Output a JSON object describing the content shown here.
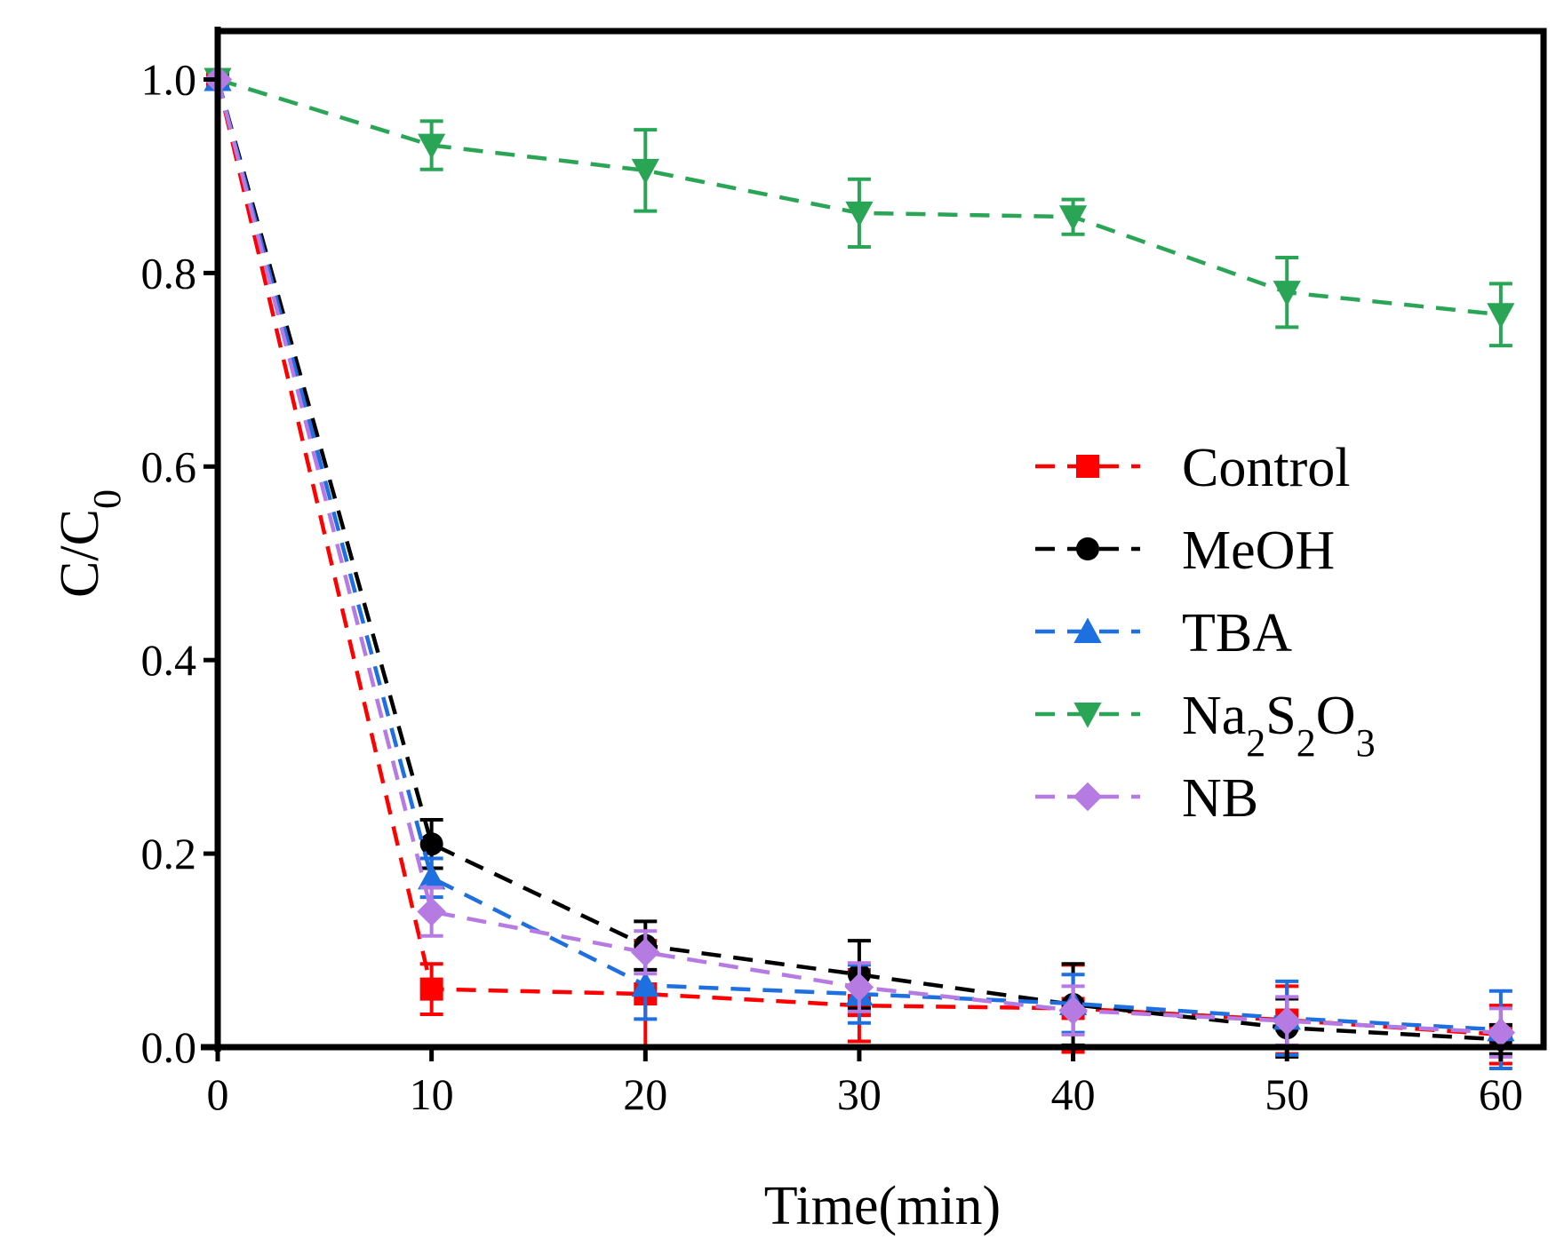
{
  "chart_data": {
    "type": "line",
    "xlabel": "Time(min)",
    "ylabel": {
      "main": "C/C",
      "sub": "0"
    },
    "xlim": [
      0,
      62
    ],
    "ylim": [
      0,
      1.05
    ],
    "xticks": [
      "0",
      "10",
      "20",
      "30",
      "40",
      "50",
      "60"
    ],
    "yticks": [
      "0.0",
      "0.2",
      "0.4",
      "0.6",
      "0.8",
      "1.0"
    ],
    "x": [
      0,
      10,
      20,
      30,
      40,
      50,
      60
    ],
    "legend_position": "center-right",
    "series": [
      {
        "key": "control",
        "name": "Control",
        "color": "#ff0000",
        "marker": "square",
        "values": [
          1.0,
          0.06,
          0.055,
          0.043,
          0.04,
          0.028,
          0.013
        ],
        "errors": [
          0,
          0.026,
          0.055,
          0.037,
          0.045,
          0.035,
          0.03
        ]
      },
      {
        "key": "meoh",
        "name": "MeOH",
        "color": "#000000",
        "marker": "circle",
        "values": [
          1.0,
          0.21,
          0.105,
          0.075,
          0.044,
          0.02,
          0.008
        ],
        "errors": [
          0,
          0.025,
          0.025,
          0.035,
          0.042,
          0.03,
          0.015
        ]
      },
      {
        "key": "tba",
        "name": "TBA",
        "color": "#1e6fe0",
        "marker": "triangle-up",
        "values": [
          1.0,
          0.175,
          0.064,
          0.055,
          0.045,
          0.03,
          0.018
        ],
        "errors": [
          0,
          0.02,
          0.035,
          0.03,
          0.03,
          0.038,
          0.04
        ]
      },
      {
        "key": "na2s2o3",
        "name": "Na2S2O3",
        "name_parts": [
          [
            "Na",
            ""
          ],
          [
            "2",
            "sub"
          ],
          [
            "S",
            ""
          ],
          [
            "2",
            "sub"
          ],
          [
            "O",
            ""
          ],
          [
            "3",
            "sub"
          ]
        ],
        "color": "#2aa556",
        "marker": "triangle-down",
        "values": [
          1.0,
          0.932,
          0.906,
          0.862,
          0.858,
          0.78,
          0.757
        ],
        "errors": [
          0,
          0.025,
          0.042,
          0.035,
          0.018,
          0.036,
          0.032
        ]
      },
      {
        "key": "nb",
        "name": "NB",
        "color": "#b57be3",
        "marker": "diamond",
        "values": [
          1.0,
          0.14,
          0.098,
          0.062,
          0.038,
          0.027,
          0.015
        ],
        "errors": [
          0,
          0.025,
          0.022,
          0.025,
          0.025,
          0.025,
          0.025
        ]
      }
    ]
  }
}
